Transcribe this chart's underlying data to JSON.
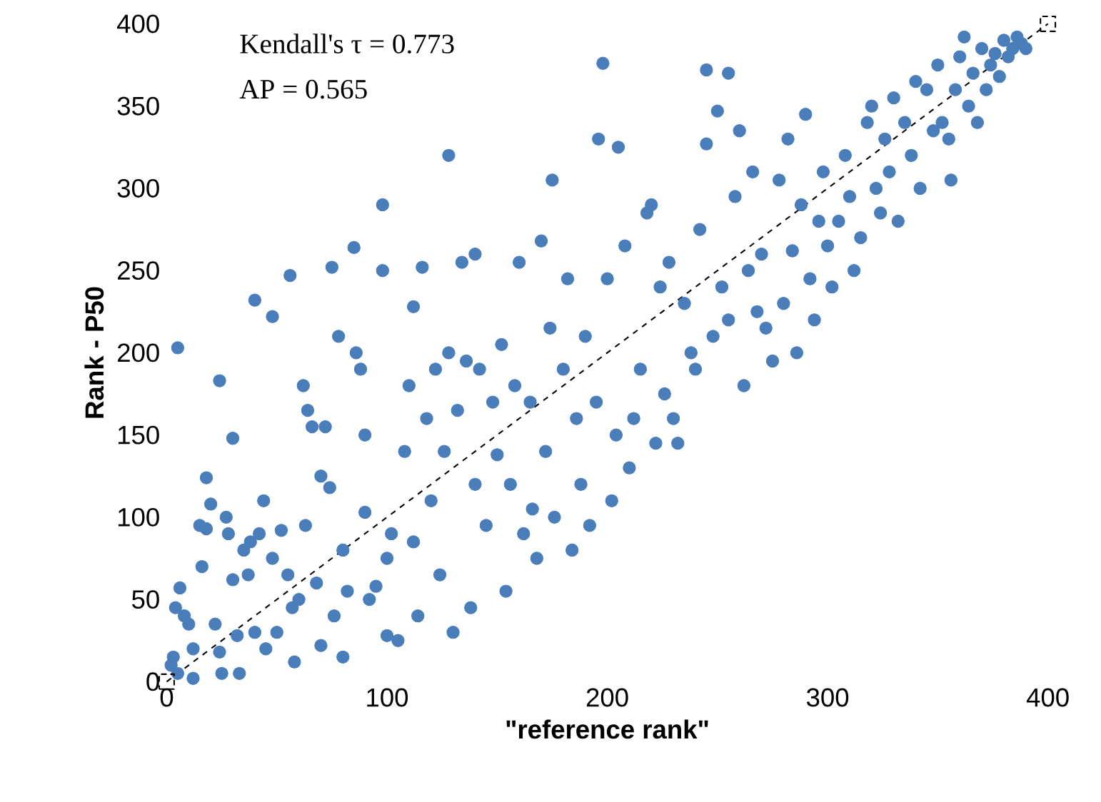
{
  "chart_data": {
    "type": "scatter",
    "xlabel": "\"reference rank\"",
    "ylabel": "Rank - P50",
    "annotations": [
      "Kendall's τ = 0.773",
      "AP = 0.565"
    ],
    "xlim": [
      0,
      400
    ],
    "ylim": [
      0,
      400
    ],
    "xticks": [
      0,
      100,
      200,
      300,
      400
    ],
    "yticks": [
      0,
      50,
      100,
      150,
      200,
      250,
      300,
      350,
      400
    ],
    "grid": false,
    "series": [
      {
        "color": "#4a7ebb",
        "marker": "circle",
        "x": [
          2,
          3,
          5,
          4,
          6,
          8,
          10,
          12,
          5,
          12,
          15,
          16,
          18,
          18,
          20,
          22,
          24,
          25,
          24,
          27,
          28,
          30,
          30,
          32,
          33,
          35,
          37,
          38,
          40,
          40,
          42,
          44,
          45,
          48,
          48,
          50,
          52,
          55,
          56,
          57,
          58,
          60,
          62,
          63,
          64,
          66,
          68,
          70,
          70,
          72,
          74,
          75,
          76,
          78,
          80,
          80,
          82,
          85,
          86,
          88,
          90,
          90,
          92,
          95,
          98,
          98,
          100,
          100,
          102,
          105,
          108,
          110,
          112,
          112,
          114,
          116,
          118,
          120,
          122,
          124,
          126,
          128,
          128,
          130,
          132,
          134,
          136,
          138,
          140,
          140,
          142,
          145,
          148,
          150,
          152,
          154,
          156,
          158,
          160,
          162,
          165,
          166,
          168,
          170,
          172,
          174,
          175,
          176,
          180,
          182,
          184,
          186,
          188,
          190,
          192,
          195,
          196,
          198,
          200,
          202,
          204,
          205,
          208,
          210,
          212,
          215,
          218,
          220,
          222,
          224,
          226,
          228,
          230,
          232,
          235,
          238,
          240,
          242,
          245,
          245,
          248,
          250,
          252,
          255,
          255,
          258,
          260,
          262,
          264,
          266,
          268,
          270,
          272,
          275,
          278,
          280,
          282,
          284,
          286,
          288,
          290,
          292,
          294,
          296,
          298,
          300,
          302,
          305,
          308,
          310,
          312,
          315,
          318,
          320,
          322,
          324,
          326,
          328,
          330,
          332,
          335,
          338,
          340,
          342,
          345,
          348,
          350,
          352,
          355,
          356,
          358,
          360,
          362,
          364,
          366,
          368,
          370,
          372,
          374,
          376,
          378,
          380,
          382,
          384,
          386,
          388,
          390
        ],
        "values": [
          10,
          15,
          5,
          45,
          57,
          40,
          35,
          20,
          203,
          2,
          95,
          70,
          124,
          93,
          108,
          35,
          18,
          5,
          183,
          100,
          90,
          62,
          148,
          28,
          5,
          80,
          65,
          85,
          232,
          30,
          90,
          110,
          20,
          222,
          75,
          30,
          92,
          65,
          247,
          45,
          12,
          50,
          180,
          95,
          165,
          155,
          60,
          22,
          125,
          155,
          118,
          252,
          40,
          210,
          80,
          15,
          55,
          264,
          200,
          190,
          150,
          103,
          50,
          58,
          250,
          290,
          75,
          28,
          90,
          25,
          140,
          180,
          228,
          85,
          40,
          252,
          160,
          110,
          190,
          65,
          140,
          320,
          200,
          30,
          165,
          255,
          195,
          45,
          260,
          120,
          190,
          95,
          170,
          138,
          205,
          55,
          120,
          180,
          255,
          90,
          170,
          105,
          75,
          268,
          140,
          215,
          305,
          100,
          190,
          245,
          80,
          160,
          120,
          210,
          95,
          170,
          330,
          376,
          245,
          110,
          150,
          325,
          265,
          130,
          160,
          190,
          285,
          290,
          145,
          240,
          175,
          255,
          160,
          145,
          230,
          200,
          190,
          275,
          372,
          327,
          210,
          347,
          240,
          370,
          220,
          295,
          335,
          180,
          250,
          310,
          225,
          260,
          215,
          195,
          305,
          230,
          330,
          262,
          200,
          290,
          345,
          245,
          220,
          280,
          310,
          265,
          240,
          280,
          320,
          295,
          250,
          270,
          340,
          350,
          300,
          285,
          330,
          310,
          355,
          280,
          340,
          320,
          365,
          300,
          360,
          335,
          375,
          340,
          330,
          305,
          360,
          380,
          392,
          350,
          370,
          340,
          385,
          360,
          375,
          382,
          368,
          390,
          380,
          385,
          392,
          388,
          385
        ]
      },
      {
        "type": "line",
        "color": "#000000",
        "line_style": "dashed",
        "marker": "square",
        "x": [
          0,
          400
        ],
        "values": [
          0,
          400
        ]
      }
    ]
  }
}
